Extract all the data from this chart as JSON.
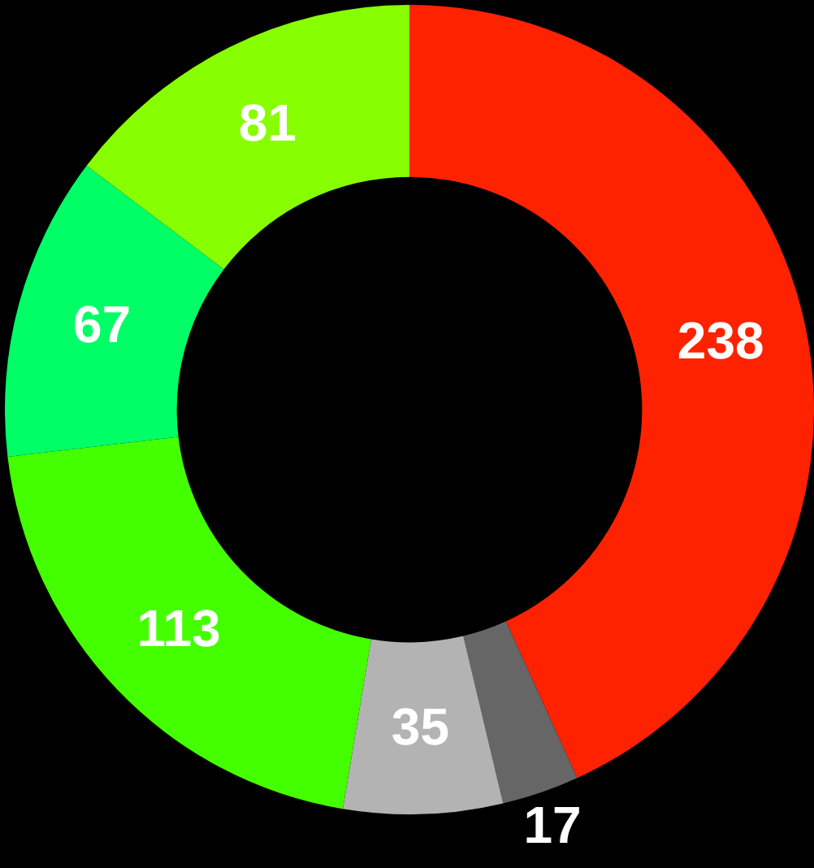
{
  "chart_data": {
    "type": "donut",
    "categories": [
      null,
      null,
      null,
      null,
      null,
      null
    ],
    "values": [
      238,
      17,
      35,
      113,
      67,
      81
    ],
    "colors": [
      "#ff2200",
      "#666666",
      "#b3b3b3",
      "#44ff00",
      "#00ff66",
      "#88ff00"
    ],
    "data_labels": true
  }
}
